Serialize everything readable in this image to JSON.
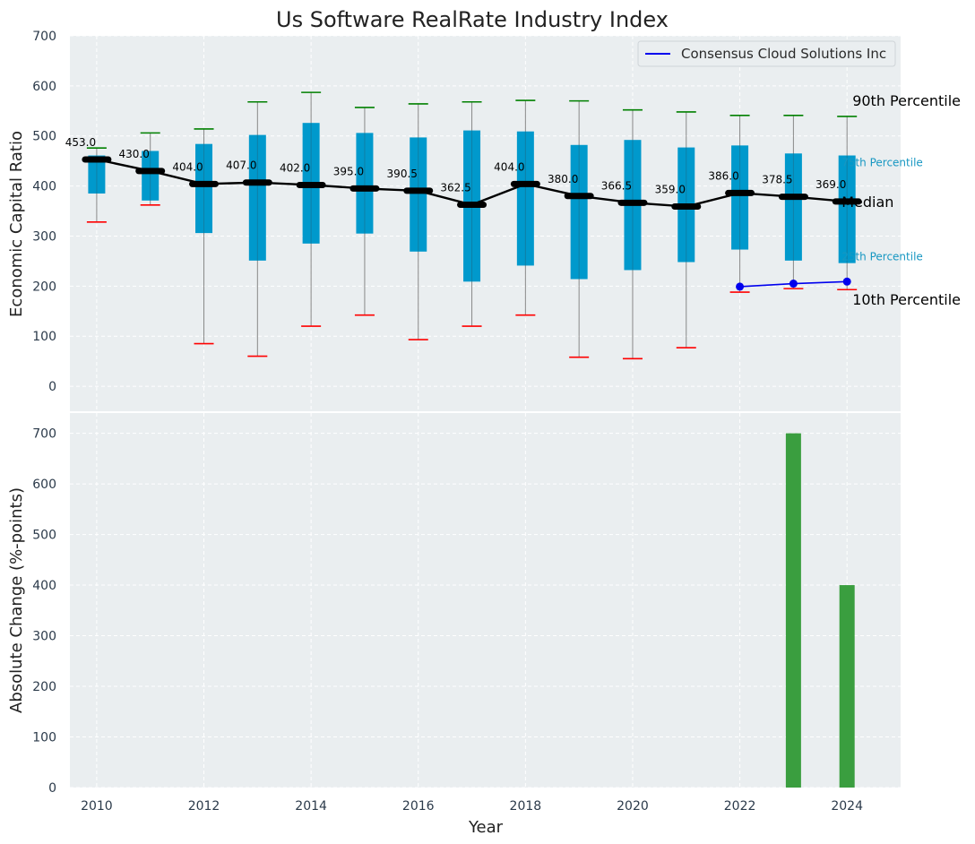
{
  "figure": {
    "title": "Us Software RealRate Industry Index"
  },
  "colors": {
    "panel_bg": "#eaeef0",
    "grid": "#ffffff",
    "box_fill": "#0099cc",
    "median_line": "#000000",
    "whisker_high": "#008000",
    "whisker_low": "#ff0000",
    "whisker_stem": "#888888",
    "company_line": "#0000ee",
    "bar": "#3a9e3f",
    "pct_small_text": "#1797c2"
  },
  "chart_data": [
    {
      "type": "box",
      "panel": "top",
      "ylabel": "Economic Capital Ratio",
      "ylim": [
        -50,
        700
      ],
      "yticks": [
        0,
        100,
        200,
        300,
        400,
        500,
        600,
        700
      ],
      "xlim": [
        2009.5,
        2025
      ],
      "grid": true,
      "x": [
        2010,
        2011,
        2012,
        2013,
        2014,
        2015,
        2016,
        2017,
        2018,
        2019,
        2020,
        2021,
        2022,
        2023,
        2024
      ],
      "p10": [
        328,
        362,
        85,
        60,
        120,
        142,
        93,
        120,
        142,
        58,
        55,
        77,
        188,
        195,
        193
      ],
      "p25": [
        385,
        371,
        306,
        251,
        285,
        305,
        269,
        209,
        241,
        214,
        232,
        248,
        273,
        251,
        246
      ],
      "median": [
        453.0,
        430.0,
        404.0,
        407.0,
        402.0,
        395.0,
        390.5,
        362.5,
        404.0,
        380.0,
        366.5,
        359.0,
        386.0,
        378.5,
        369.0
      ],
      "median_labels": [
        "453.0",
        "430.0",
        "404.0",
        "407.0",
        "402.0",
        "395.0",
        "390.5",
        "362.5",
        "404.0",
        "380.0",
        "366.5",
        "359.0",
        "386.0",
        "378.5",
        "369.0"
      ],
      "p75": [
        461,
        470,
        484,
        502,
        526,
        506,
        497,
        511,
        509,
        482,
        492,
        477,
        481,
        465,
        461
      ],
      "p90": [
        476,
        506,
        514,
        568,
        587,
        557,
        564,
        568,
        571,
        570,
        552,
        548,
        541,
        541,
        539
      ],
      "company": {
        "name": "Consensus Cloud Solutions Inc",
        "x": [
          2022,
          2023,
          2024
        ],
        "y": [
          199,
          205,
          209
        ]
      },
      "annotations": {
        "p90": "90th Percentile",
        "p75": "75th Percentile",
        "median": "Median",
        "p25": "25th Percentile",
        "p10": "10th Percentile"
      },
      "legend": {
        "position": "top-right",
        "entries": [
          "Consensus Cloud Solutions Inc"
        ]
      }
    },
    {
      "type": "bar",
      "panel": "bottom",
      "ylabel": "Absolute Change (%-points)",
      "xlabel": "Year",
      "ylim": [
        0,
        740
      ],
      "yticks": [
        0,
        100,
        200,
        300,
        400,
        500,
        600,
        700
      ],
      "xlim": [
        2009.5,
        2025
      ],
      "xticks": [
        2010,
        2012,
        2014,
        2016,
        2018,
        2020,
        2022,
        2024
      ],
      "grid": true,
      "x": [
        2023,
        2024
      ],
      "values": [
        700,
        400
      ]
    }
  ]
}
